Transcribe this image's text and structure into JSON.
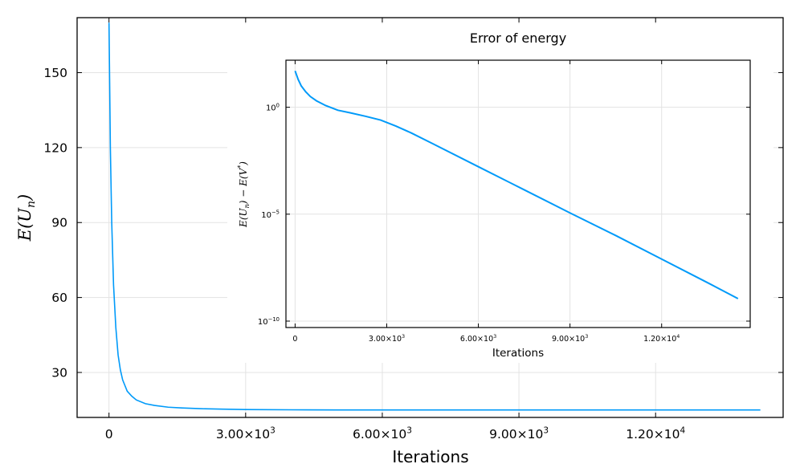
{
  "chart_data": [
    {
      "id": "main",
      "type": "line",
      "title": "",
      "xlabel": "Iterations",
      "ylabel": "E(U_n)",
      "ylabel_parts": {
        "base": "E(U",
        "sub": "n",
        "close": ")"
      },
      "xlim": [
        -700,
        14800
      ],
      "ylim": [
        12,
        172
      ],
      "grid": true,
      "xticks": [
        0,
        3000,
        6000,
        9000,
        12000
      ],
      "xtick_labels": [
        {
          "mant": "0",
          "exp": ""
        },
        {
          "mant": "3.00×10",
          "exp": "3"
        },
        {
          "mant": "6.00×10",
          "exp": "3"
        },
        {
          "mant": "9.00×10",
          "exp": "3"
        },
        {
          "mant": "1.20×10",
          "exp": "4"
        }
      ],
      "yticks": [
        30,
        60,
        90,
        120,
        150
      ],
      "ytick_labels": [
        "30",
        "60",
        "90",
        "120",
        "150"
      ],
      "series": [
        {
          "name": "E(U_n)",
          "color": "#009af9",
          "x": [
            0,
            30,
            60,
            100,
            150,
            200,
            250,
            300,
            400,
            500,
            600,
            800,
            1000,
            1300,
            1600,
            2000,
            2500,
            3000,
            4000,
            5000,
            6000,
            8000,
            10000,
            12000,
            14300
          ],
          "y": [
            170,
            120,
            90,
            65,
            48,
            37,
            31,
            27,
            22.5,
            20.5,
            19,
            17.5,
            16.8,
            16.1,
            15.8,
            15.5,
            15.3,
            15.15,
            15.05,
            15.0,
            15.0,
            15.0,
            15.0,
            15.0,
            15.0
          ]
        }
      ]
    },
    {
      "id": "inset",
      "type": "line",
      "title": "Error of energy",
      "xlabel": "Iterations",
      "ylabel": "E(U_n) - E(V^*)",
      "ylabel_parts": {
        "a": "E(U",
        "sub": "n",
        "b": ") − E(V",
        "sup": "*",
        "c": ")"
      },
      "yscale": "log10",
      "xlim": [
        -300,
        14900
      ],
      "ylim_log10": [
        -10.3,
        2.2
      ],
      "grid": true,
      "xticks": [
        0,
        3000,
        6000,
        9000,
        12000
      ],
      "xtick_labels": [
        {
          "mant": "0",
          "exp": ""
        },
        {
          "mant": "3.00×10",
          "exp": "3"
        },
        {
          "mant": "6.00×10",
          "exp": "3"
        },
        {
          "mant": "9.00×10",
          "exp": "3"
        },
        {
          "mant": "1.20×10",
          "exp": "4"
        }
      ],
      "yticks_log10": [
        0,
        -5,
        -10
      ],
      "ytick_labels": [
        {
          "mant": "10",
          "exp": "0"
        },
        {
          "mant": "10",
          "exp": "−5"
        },
        {
          "mant": "10",
          "exp": "−10"
        }
      ],
      "series": [
        {
          "name": "E(U_n) - E(V^*)",
          "color": "#009af9",
          "x": [
            0,
            100,
            200,
            350,
            500,
            700,
            1000,
            1400,
            1800,
            2300,
            2800,
            3300,
            3800,
            4500,
            6000,
            7500,
            9000,
            10500,
            12000,
            13500,
            14500
          ],
          "log10_y": [
            1.7,
            1.3,
            1.0,
            0.72,
            0.5,
            0.3,
            0.08,
            -0.14,
            -0.26,
            -0.42,
            -0.6,
            -0.88,
            -1.2,
            -1.7,
            -2.78,
            -3.86,
            -4.94,
            -6.0,
            -7.1,
            -8.2,
            -8.95
          ]
        }
      ]
    }
  ]
}
